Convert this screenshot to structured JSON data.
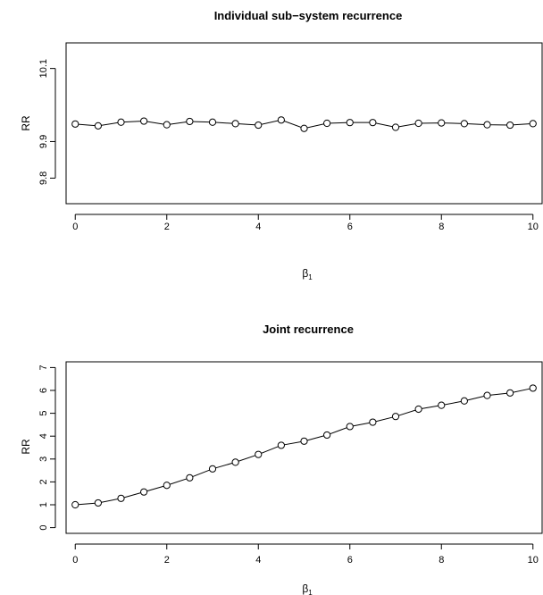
{
  "chart_data": [
    {
      "type": "line",
      "title": "Individual sub−system recurrence",
      "xlabel": "β",
      "xlabel_sub": "1",
      "ylabel": "RR",
      "xlim": [
        -0.2,
        10.2
      ],
      "ylim": [
        9.73,
        10.17
      ],
      "xticks": [
        0,
        2,
        4,
        6,
        8,
        10
      ],
      "yticks": [
        9.8,
        9.9,
        10.1
      ],
      "grid": false,
      "marker": "open-circle",
      "series": [
        {
          "x": [
            0,
            0.5,
            1,
            1.5,
            2,
            2.5,
            3,
            3.5,
            4,
            4.5,
            5,
            5.5,
            6,
            6.5,
            7,
            7.5,
            8,
            8.5,
            9,
            9.5,
            10
          ],
          "values": [
            9.948,
            9.943,
            9.953,
            9.956,
            9.946,
            9.955,
            9.953,
            9.949,
            9.945,
            9.959,
            9.936,
            9.95,
            9.952,
            9.952,
            9.939,
            9.95,
            9.951,
            9.949,
            9.946,
            9.945,
            9.949
          ]
        }
      ]
    },
    {
      "type": "line",
      "title": "Joint recurrence",
      "xlabel": "β",
      "xlabel_sub": "1",
      "ylabel": "RR",
      "xlim": [
        -0.2,
        10.2
      ],
      "ylim": [
        -0.25,
        7.25
      ],
      "xticks": [
        0,
        2,
        4,
        6,
        8,
        10
      ],
      "yticks": [
        0,
        1,
        2,
        3,
        4,
        5,
        6,
        7
      ],
      "grid": false,
      "marker": "open-circle",
      "series": [
        {
          "x": [
            0,
            0.5,
            1,
            1.5,
            2,
            2.5,
            3,
            3.5,
            4,
            4.5,
            5,
            5.5,
            6,
            6.5,
            7,
            7.5,
            8,
            8.5,
            9,
            9.5,
            10
          ],
          "values": [
            1.0,
            1.08,
            1.28,
            1.56,
            1.85,
            2.18,
            2.57,
            2.86,
            3.2,
            3.6,
            3.78,
            4.05,
            4.42,
            4.61,
            4.86,
            5.18,
            5.35,
            5.54,
            5.78,
            5.89,
            6.1
          ]
        }
      ]
    }
  ]
}
